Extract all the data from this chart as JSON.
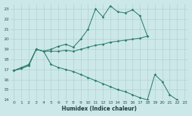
{
  "xlabel": "Humidex (Indice chaleur)",
  "bg_color": "#cce8e8",
  "line_color": "#2d7d6e",
  "grid_color": "#b0d0d0",
  "xlim": [
    -0.5,
    23.5
  ],
  "ylim": [
    14,
    23.5
  ],
  "yticks": [
    14,
    15,
    16,
    17,
    18,
    19,
    20,
    21,
    22,
    23
  ],
  "xticks": [
    0,
    1,
    2,
    3,
    4,
    5,
    6,
    7,
    8,
    9,
    10,
    11,
    12,
    13,
    14,
    15,
    16,
    17,
    18,
    19,
    20,
    21,
    22,
    23
  ],
  "line1_x": [
    0,
    1,
    2,
    3,
    4,
    5,
    6,
    7,
    8,
    9,
    10,
    11,
    12,
    13,
    14,
    15,
    16,
    17,
    18
  ],
  "line1_y": [
    16.9,
    17.1,
    17.4,
    19.0,
    18.8,
    19.0,
    19.3,
    19.5,
    19.2,
    20.0,
    21.0,
    23.0,
    22.2,
    23.3,
    22.7,
    22.6,
    22.9,
    22.3,
    20.3
  ],
  "line2_x": [
    0,
    1,
    2,
    3,
    4,
    5,
    6,
    7,
    8,
    9,
    10,
    11,
    12,
    13,
    14,
    15,
    16,
    17,
    18
  ],
  "line2_y": [
    16.9,
    17.2,
    17.5,
    19.0,
    18.8,
    18.8,
    18.8,
    18.9,
    18.8,
    19.0,
    19.2,
    19.4,
    19.5,
    19.7,
    19.8,
    19.9,
    20.0,
    20.1,
    20.3
  ],
  "line3_x": [
    0,
    1,
    2,
    3,
    4,
    5,
    6,
    7,
    8,
    9,
    10,
    11,
    12,
    13,
    14,
    15,
    16,
    17,
    18,
    19,
    20,
    21,
    22,
    23
  ],
  "line3_y": [
    16.9,
    17.1,
    17.4,
    19.0,
    18.8,
    17.5,
    17.2,
    17.0,
    16.8,
    16.5,
    16.2,
    15.9,
    15.6,
    15.3,
    15.0,
    14.8,
    14.5,
    14.2,
    14.0,
    16.5,
    15.8,
    14.5,
    14.0,
    13.8
  ]
}
